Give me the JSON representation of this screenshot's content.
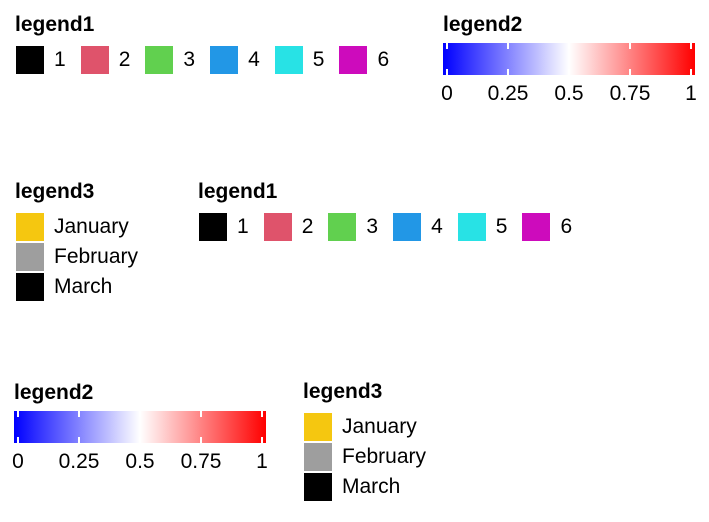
{
  "colors": {
    "discrete_1": [
      "#000000",
      "#DF536B",
      "#61D04F",
      "#2297E6",
      "#28E2E5",
      "#CD0BBC"
    ],
    "months": [
      "#F5C710",
      "#9E9E9E",
      "#000000"
    ],
    "gradient": [
      "#0000FF",
      "#FFFFFF",
      "#FF0000"
    ]
  },
  "chart_data": [
    {
      "type": "legend-discrete",
      "title": "legend1",
      "orientation": "horizontal",
      "entries": [
        {
          "label": "1",
          "color": "#000000"
        },
        {
          "label": "2",
          "color": "#DF536B"
        },
        {
          "label": "3",
          "color": "#61D04F"
        },
        {
          "label": "4",
          "color": "#2297E6"
        },
        {
          "label": "5",
          "color": "#28E2E5"
        },
        {
          "label": "6",
          "color": "#CD0BBC"
        }
      ]
    },
    {
      "type": "legend-continuous",
      "title": "legend2",
      "range": [
        0,
        1
      ],
      "ticks": [
        0,
        0.25,
        0.5,
        0.75,
        1
      ],
      "tick_labels": [
        "0",
        "0.25",
        "0.5",
        "0.75",
        "1"
      ],
      "colors": [
        "#0000FF",
        "#FFFFFF",
        "#FF0000"
      ]
    },
    {
      "type": "legend-discrete",
      "title": "legend3",
      "orientation": "vertical",
      "entries": [
        {
          "label": "January",
          "color": "#F5C710"
        },
        {
          "label": "February",
          "color": "#9E9E9E"
        },
        {
          "label": "March",
          "color": "#000000"
        }
      ]
    },
    {
      "type": "legend-discrete",
      "title": "legend1",
      "orientation": "horizontal",
      "entries": [
        {
          "label": "1",
          "color": "#000000"
        },
        {
          "label": "2",
          "color": "#DF536B"
        },
        {
          "label": "3",
          "color": "#61D04F"
        },
        {
          "label": "4",
          "color": "#2297E6"
        },
        {
          "label": "5",
          "color": "#28E2E5"
        },
        {
          "label": "6",
          "color": "#CD0BBC"
        }
      ]
    },
    {
      "type": "legend-continuous",
      "title": "legend2",
      "range": [
        0,
        1
      ],
      "ticks": [
        0,
        0.25,
        0.5,
        0.75,
        1
      ],
      "tick_labels": [
        "0",
        "0.25",
        "0.5",
        "0.75",
        "1"
      ],
      "colors": [
        "#0000FF",
        "#FFFFFF",
        "#FF0000"
      ]
    },
    {
      "type": "legend-discrete",
      "title": "legend3",
      "orientation": "vertical",
      "entries": [
        {
          "label": "January",
          "color": "#F5C710"
        },
        {
          "label": "February",
          "color": "#9E9E9E"
        },
        {
          "label": "March",
          "color": "#000000"
        }
      ]
    }
  ]
}
